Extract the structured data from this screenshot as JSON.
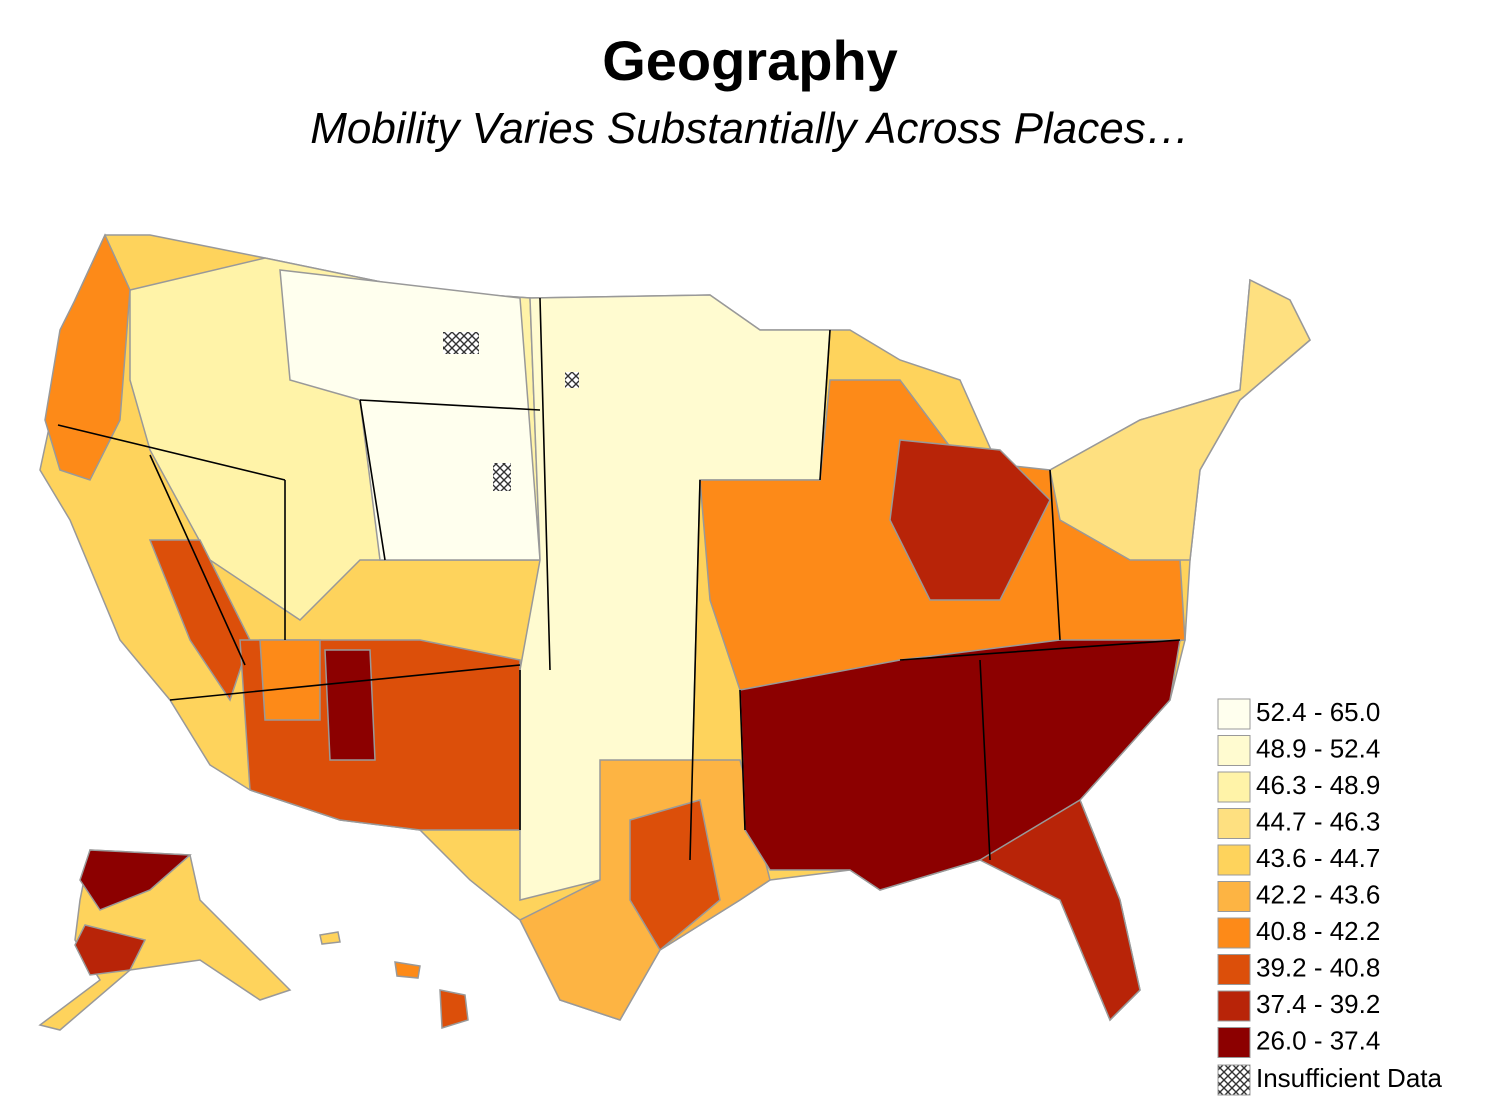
{
  "header": {
    "title": "Geography",
    "subtitle": "Mobility Varies Substantially Across Places…"
  },
  "legend": {
    "items": [
      {
        "label": "52.4 - 65.0",
        "color": "#ffffee"
      },
      {
        "label": "48.9 - 52.4",
        "color": "#fffbd0"
      },
      {
        "label": "46.3 - 48.9",
        "color": "#fff3a8"
      },
      {
        "label": "44.7 - 46.3",
        "color": "#fee080"
      },
      {
        "label": "43.6 - 44.7",
        "color": "#fed35c"
      },
      {
        "label": "42.2 - 43.6",
        "color": "#fdb443"
      },
      {
        "label": "40.8 - 42.2",
        "color": "#fd8a18"
      },
      {
        "label": "39.2 - 40.8",
        "color": "#dc4f0a"
      },
      {
        "label": "37.4 - 39.2",
        "color": "#b82408"
      },
      {
        "label": "26.0 - 37.4",
        "color": "#8c0000"
      }
    ],
    "insufficient_label": "Insufficient Data"
  }
}
